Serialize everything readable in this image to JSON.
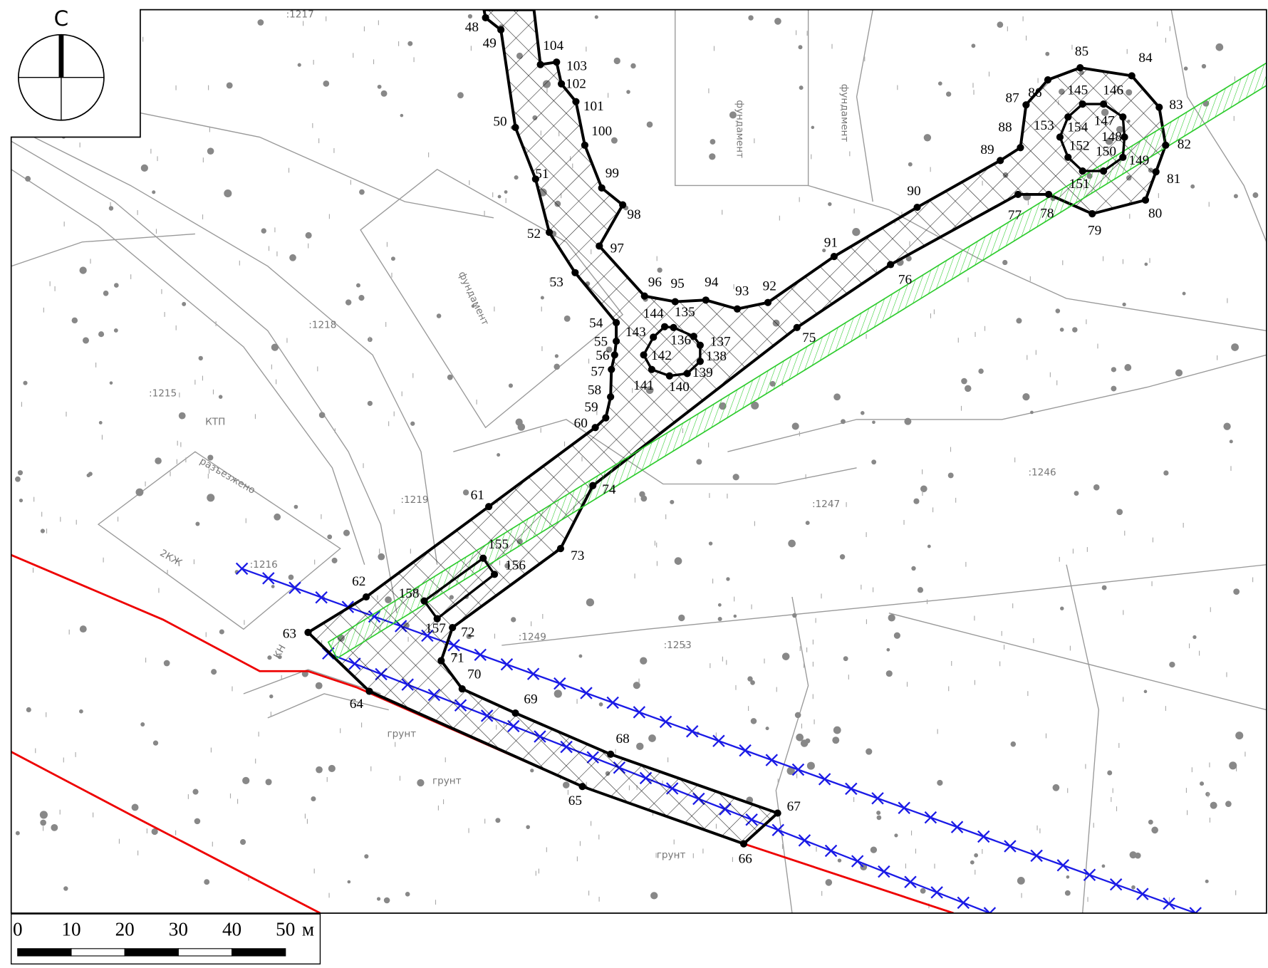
{
  "north": "С",
  "scale": {
    "labels": [
      "0",
      "10",
      "20",
      "30",
      "40",
      "50"
    ],
    "unit": "м"
  },
  "points": [
    "48",
    "49",
    "50",
    "51",
    "52",
    "53",
    "54",
    "55",
    "56",
    "57",
    "58",
    "59",
    "60",
    "61",
    "62",
    "63",
    "64",
    "65",
    "66",
    "67",
    "68",
    "69",
    "70",
    "71",
    "72",
    "73",
    "74",
    "75",
    "76",
    "77",
    "78",
    "79",
    "80",
    "81",
    "82",
    "83",
    "84",
    "85",
    "86",
    "87",
    "88",
    "89",
    "90",
    "91",
    "92",
    "93",
    "94",
    "95",
    "96",
    "97",
    "98",
    "99",
    "100",
    "101",
    "102",
    "103",
    "104",
    "135",
    "136",
    "137",
    "138",
    "139",
    "140",
    "141",
    "142",
    "143",
    "144",
    "145",
    "146",
    "147",
    "148",
    "149",
    "150",
    "151",
    "152",
    "153",
    "154",
    "155",
    "156",
    "157",
    "158"
  ],
  "map_labels": [
    "2КЖ",
    "КН",
    "КТП",
    "фундамент",
    "фундамент",
    "фундамент",
    "разъезжено",
    "грунт",
    "грунт",
    "грунт",
    ":1215",
    ":1216",
    ":1217",
    ":1218",
    ":1219",
    ":1246",
    ":1247",
    ":1249",
    ":1253"
  ]
}
